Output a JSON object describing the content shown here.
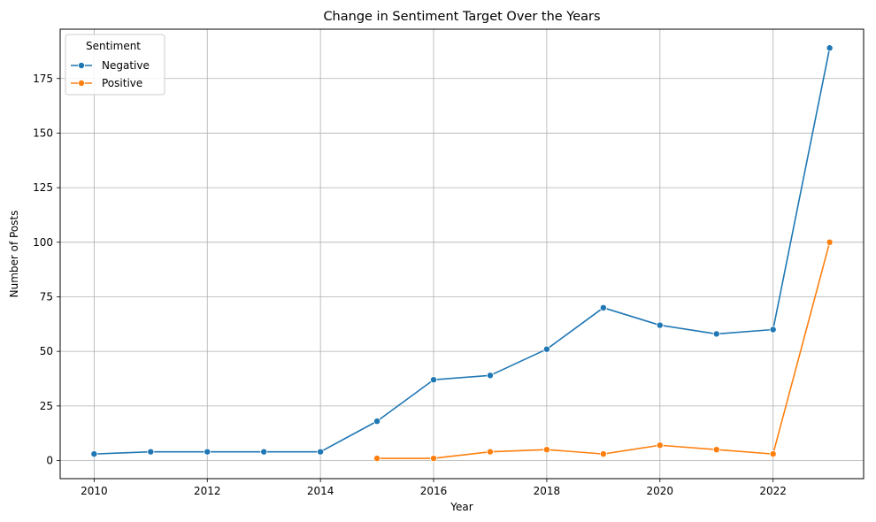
{
  "chart_data": {
    "type": "line",
    "title": "Change in Sentiment Target Over the Years",
    "xlabel": "Year",
    "ylabel": "Number of Posts",
    "xlim": [
      2009.4,
      2023.6
    ],
    "ylim": [
      -8.3,
      197.6
    ],
    "xticks": [
      2010,
      2012,
      2014,
      2016,
      2018,
      2020,
      2022
    ],
    "yticks": [
      0,
      25,
      50,
      75,
      100,
      125,
      150,
      175
    ],
    "grid": true,
    "legend": {
      "title": "Sentiment",
      "position": "top-left"
    },
    "series": [
      {
        "name": "Negative",
        "color": "#1f77b4",
        "x": [
          2010,
          2011,
          2012,
          2013,
          2014,
          2015,
          2016,
          2017,
          2018,
          2019,
          2020,
          2021,
          2022,
          2023
        ],
        "values": [
          3,
          4,
          4,
          4,
          4,
          18,
          37,
          39,
          51,
          70,
          62,
          58,
          60,
          189
        ]
      },
      {
        "name": "Positive",
        "color": "#ff7f0e",
        "x": [
          2015,
          2016,
          2017,
          2018,
          2019,
          2020,
          2021,
          2022,
          2023
        ],
        "values": [
          1,
          1,
          4,
          5,
          3,
          7,
          5,
          3,
          100
        ]
      }
    ]
  }
}
